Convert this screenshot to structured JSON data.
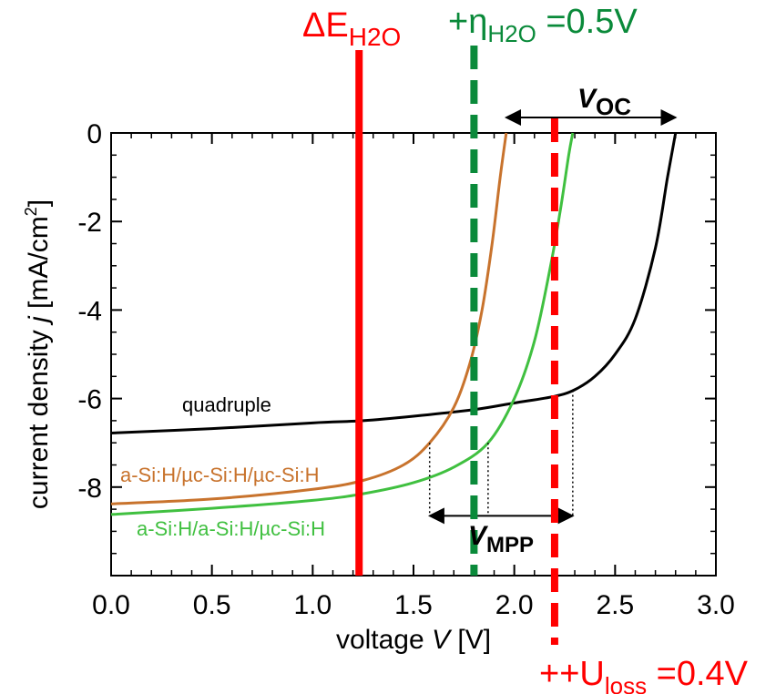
{
  "chart_data": {
    "type": "line",
    "xlabel": {
      "prefix": "voltage ",
      "var": "V",
      "suffix": " [V]"
    },
    "ylabel": {
      "prefix": "current density ",
      "var": "j",
      "suffix": " [mA/cm",
      "sup": "2",
      "end": "]"
    },
    "xlim": [
      0.0,
      3.0
    ],
    "ylim": [
      -10.0,
      0.0
    ],
    "x_ticks": [
      "0.0",
      "0.5",
      "1.0",
      "1.5",
      "2.0",
      "2.5",
      "3.0"
    ],
    "y_ticks": [
      "0",
      "-2",
      "-4",
      "-6",
      "-8"
    ],
    "y_tick_values": [
      0,
      -2,
      -4,
      -6,
      -8
    ],
    "series": [
      {
        "name": "quadruple",
        "color": "#000000",
        "x": [
          0.0,
          0.5,
          1.0,
          1.25,
          1.5,
          1.8,
          2.0,
          2.2,
          2.3,
          2.4,
          2.5,
          2.6,
          2.7,
          2.76,
          2.8
        ],
        "y": [
          -6.78,
          -6.68,
          -6.55,
          -6.5,
          -6.4,
          -6.25,
          -6.1,
          -5.95,
          -5.8,
          -5.5,
          -5.0,
          -4.2,
          -2.6,
          -1.0,
          0.0
        ]
      },
      {
        "name": "a-Si:H/µc-Si:H/µc-Si:H",
        "color": "#c8732d",
        "x": [
          0.0,
          0.5,
          1.0,
          1.25,
          1.45,
          1.58,
          1.7,
          1.78,
          1.84,
          1.89,
          1.93,
          1.96
        ],
        "y": [
          -8.38,
          -8.27,
          -8.05,
          -7.85,
          -7.5,
          -7.0,
          -6.2,
          -5.2,
          -4.0,
          -2.5,
          -1.0,
          0.0
        ]
      },
      {
        "name": "a-Si:H/a-Si:H/µc-Si:H",
        "color": "#40c040",
        "x": [
          0.0,
          0.5,
          1.0,
          1.25,
          1.5,
          1.7,
          1.87,
          2.0,
          2.1,
          2.18,
          2.23,
          2.27,
          2.29
        ],
        "y": [
          -8.62,
          -8.48,
          -8.3,
          -8.15,
          -7.9,
          -7.55,
          -7.0,
          -6.0,
          -4.7,
          -3.0,
          -1.7,
          -0.5,
          0.0
        ]
      }
    ],
    "vertical_lines": [
      {
        "label": "ΔE",
        "sub": "H2O",
        "x": 1.23,
        "color": "#ff0000",
        "style": "solid"
      },
      {
        "label": "+η",
        "sub": "H2O",
        "suffix": " =0.5V",
        "x": 1.8,
        "color": "#0a8a3a",
        "style": "dashed"
      },
      {
        "label": "++U",
        "sub": "loss",
        "suffix": " =0.4V",
        "x": 2.2,
        "color": "#ff0000",
        "style": "dashed"
      }
    ],
    "annotations": {
      "voc": {
        "label": "V",
        "sub": "OC",
        "x_range": [
          1.96,
          2.8
        ]
      },
      "vmpp": {
        "label": "V",
        "sub": "MPP",
        "x_range": [
          1.58,
          2.29
        ],
        "y": -8.65,
        "drop_x": [
          1.58,
          1.87,
          2.29
        ]
      }
    }
  }
}
